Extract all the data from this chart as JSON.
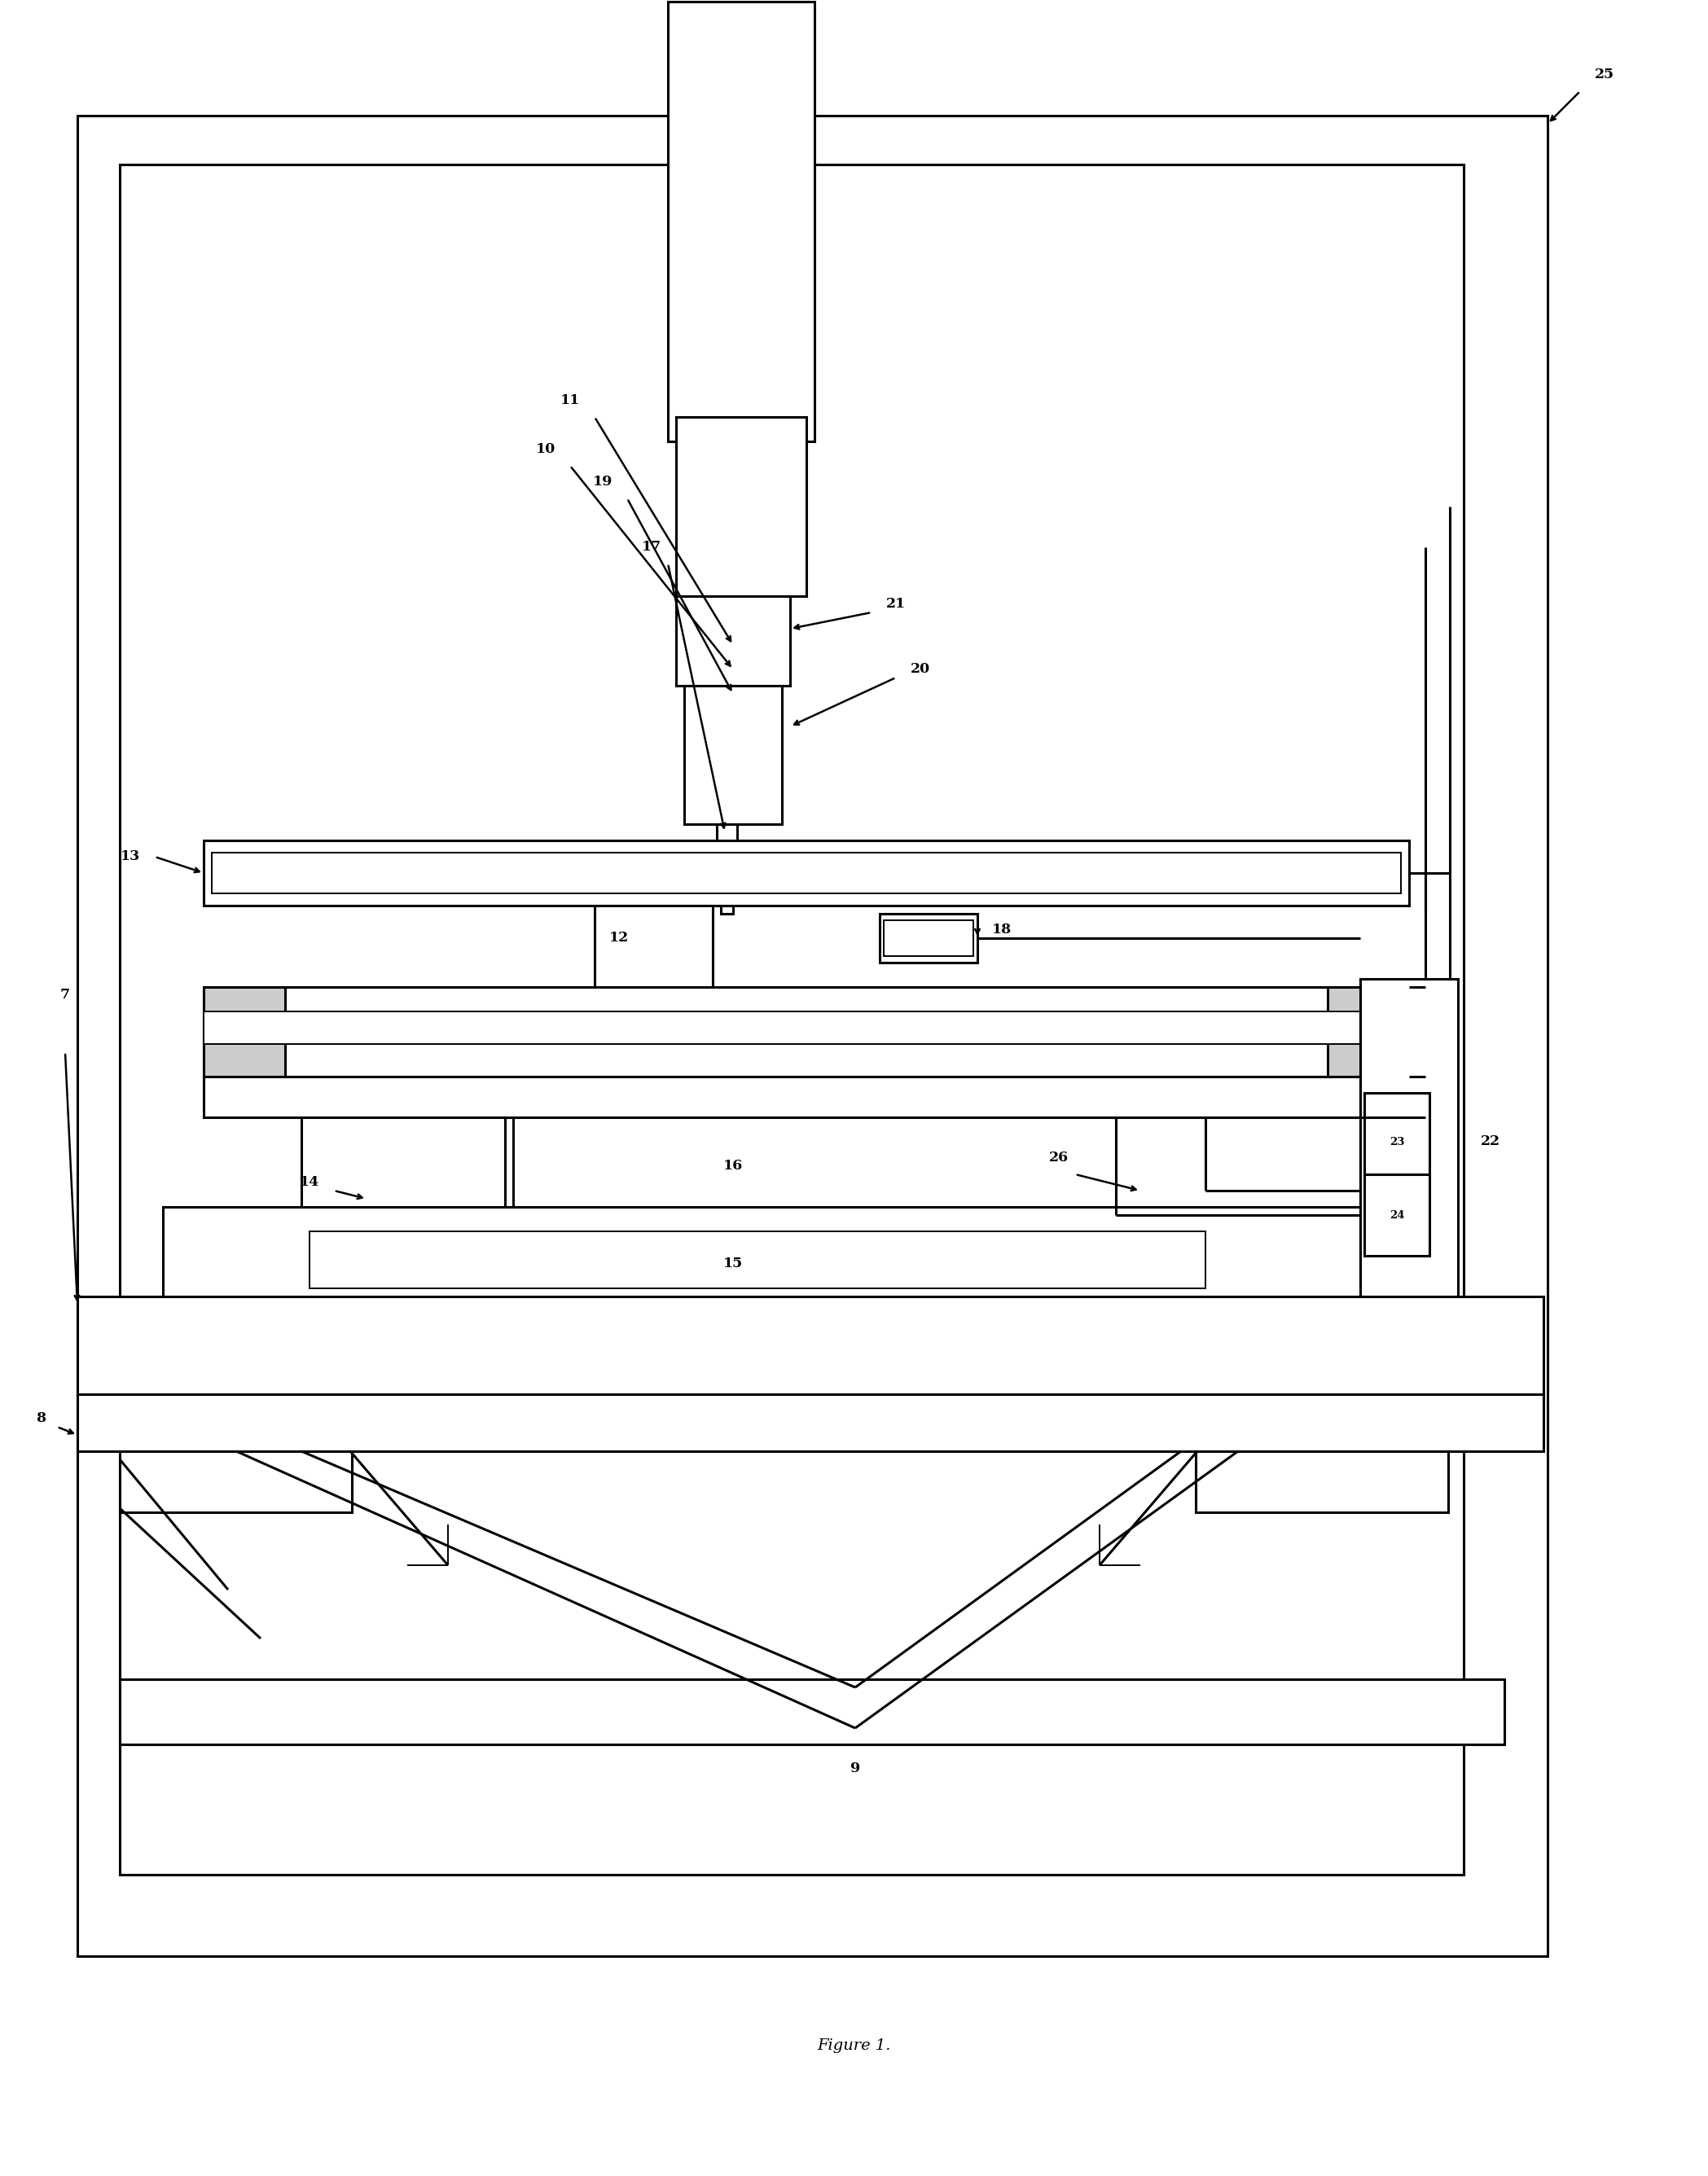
{
  "bg": "#ffffff",
  "lc": "#000000",
  "lw": 2.2,
  "tlw": 1.4,
  "fig_width": 20.97,
  "fig_height": 26.72,
  "caption": "Figure 1."
}
